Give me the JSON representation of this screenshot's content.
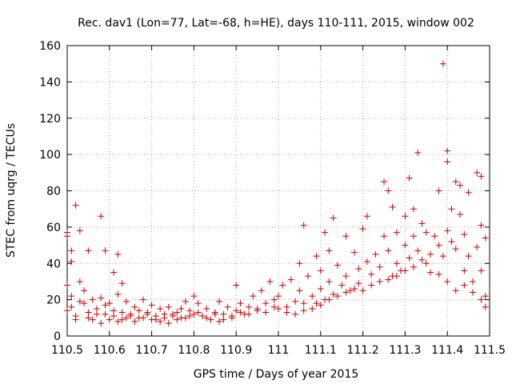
{
  "chart_data": {
    "type": "scatter",
    "title": "Rec. dav1 (Lon=77, Lat=-68, h=HE), days 110-111, 2015, window 002",
    "xlabel": "GPS time / Days of year 2015",
    "ylabel": "STEC from uqrg / TECUs",
    "xlim": [
      110.5,
      111.5
    ],
    "ylim": [
      0,
      160
    ],
    "x_ticks": [
      110.5,
      110.6,
      110.7,
      110.8,
      110.9,
      111.0,
      111.1,
      111.2,
      111.3,
      111.4,
      111.5
    ],
    "x_tick_labels": [
      "110.5",
      "110.6",
      "110.7",
      "110.8",
      "110.9",
      "111",
      "111.1",
      "111.2",
      "111.3",
      "111.4",
      "111.5"
    ],
    "y_ticks": [
      0,
      20,
      40,
      60,
      80,
      100,
      120,
      140,
      160
    ],
    "y_tick_labels": [
      "0",
      "20",
      "40",
      "60",
      "80",
      "100",
      "120",
      "140",
      "160"
    ],
    "grid": true,
    "marker": "+",
    "color": "#cc0000",
    "series": [
      {
        "name": "STEC",
        "points": [
          [
            110.5,
            57
          ],
          [
            110.5,
            55
          ],
          [
            110.51,
            41
          ],
          [
            110.51,
            47
          ],
          [
            110.52,
            72
          ],
          [
            110.53,
            58
          ],
          [
            110.55,
            47
          ],
          [
            110.58,
            66
          ],
          [
            110.59,
            47
          ],
          [
            110.61,
            35
          ],
          [
            110.62,
            45
          ],
          [
            110.63,
            29
          ],
          [
            110.5,
            28
          ],
          [
            110.51,
            22
          ],
          [
            110.51,
            16
          ],
          [
            110.52,
            11
          ],
          [
            110.53,
            30
          ],
          [
            110.54,
            25
          ],
          [
            110.54,
            18
          ],
          [
            110.55,
            13
          ],
          [
            110.56,
            20
          ],
          [
            110.56,
            9
          ],
          [
            110.57,
            15
          ],
          [
            110.58,
            21
          ],
          [
            110.58,
            7
          ],
          [
            110.59,
            12
          ],
          [
            110.6,
            18
          ],
          [
            110.6,
            9
          ],
          [
            110.61,
            14
          ],
          [
            110.62,
            23
          ],
          [
            110.62,
            8
          ],
          [
            110.63,
            13
          ],
          [
            110.64,
            19
          ],
          [
            110.64,
            10
          ],
          [
            110.65,
            12
          ],
          [
            110.66,
            16
          ],
          [
            110.66,
            8
          ],
          [
            110.67,
            14
          ],
          [
            110.68,
            20
          ],
          [
            110.68,
            10
          ],
          [
            110.69,
            13
          ],
          [
            110.7,
            17
          ],
          [
            110.7,
            9
          ],
          [
            110.71,
            11
          ],
          [
            110.72,
            15
          ],
          [
            110.72,
            8
          ],
          [
            110.73,
            12
          ],
          [
            110.74,
            16
          ],
          [
            110.74,
            7
          ],
          [
            110.75,
            11
          ],
          [
            110.76,
            13
          ],
          [
            110.76,
            9
          ],
          [
            110.77,
            15
          ],
          [
            110.78,
            19
          ],
          [
            110.78,
            10
          ],
          [
            110.79,
            14
          ],
          [
            110.8,
            22
          ],
          [
            110.8,
            12
          ],
          [
            110.81,
            18
          ],
          [
            110.82,
            11
          ],
          [
            110.83,
            15
          ],
          [
            110.84,
            9
          ],
          [
            110.85,
            13
          ],
          [
            110.86,
            19
          ],
          [
            110.86,
            8
          ],
          [
            110.87,
            12
          ],
          [
            110.88,
            16
          ],
          [
            110.89,
            10
          ],
          [
            110.9,
            14
          ],
          [
            110.9,
            28
          ],
          [
            110.91,
            18
          ],
          [
            110.92,
            12
          ],
          [
            110.93,
            16
          ],
          [
            110.94,
            22
          ],
          [
            110.95,
            14
          ],
          [
            110.96,
            25
          ],
          [
            110.97,
            18
          ],
          [
            110.98,
            30
          ],
          [
            110.99,
            20
          ],
          [
            110.5,
            14
          ],
          [
            110.52,
            9
          ],
          [
            110.53,
            19
          ],
          [
            110.55,
            10
          ],
          [
            110.57,
            12
          ],
          [
            110.59,
            17
          ],
          [
            110.61,
            11
          ],
          [
            110.63,
            9
          ],
          [
            110.65,
            11
          ],
          [
            110.67,
            10
          ],
          [
            110.69,
            12
          ],
          [
            110.71,
            9
          ],
          [
            110.73,
            10
          ],
          [
            110.75,
            12
          ],
          [
            110.77,
            10
          ],
          [
            110.79,
            11
          ],
          [
            110.81,
            13
          ],
          [
            110.83,
            10
          ],
          [
            110.85,
            12
          ],
          [
            110.87,
            9
          ],
          [
            110.89,
            11
          ],
          [
            110.91,
            13
          ],
          [
            110.93,
            12
          ],
          [
            110.95,
            15
          ],
          [
            110.97,
            13
          ],
          [
            110.99,
            16
          ],
          [
            111.0,
            22
          ],
          [
            111.01,
            28
          ],
          [
            111.02,
            16
          ],
          [
            111.03,
            31
          ],
          [
            111.04,
            19
          ],
          [
            111.05,
            40
          ],
          [
            111.05,
            25
          ],
          [
            111.06,
            61
          ],
          [
            111.06,
            14
          ],
          [
            111.07,
            33
          ],
          [
            111.08,
            22
          ],
          [
            111.09,
            44
          ],
          [
            111.09,
            18
          ],
          [
            111.1,
            36
          ],
          [
            111.1,
            26
          ],
          [
            111.11,
            57
          ],
          [
            111.11,
            20
          ],
          [
            111.12,
            47
          ],
          [
            111.12,
            30
          ],
          [
            111.13,
            65
          ],
          [
            111.13,
            23
          ],
          [
            111.14,
            39
          ],
          [
            111.15,
            28
          ],
          [
            111.16,
            55
          ],
          [
            111.16,
            33
          ],
          [
            111.17,
            25
          ],
          [
            111.18,
            46
          ],
          [
            111.19,
            37
          ],
          [
            111.19,
            29
          ],
          [
            111.2,
            59
          ],
          [
            111.21,
            66
          ],
          [
            111.21,
            41
          ],
          [
            111.22,
            34
          ],
          [
            111.23,
            45
          ],
          [
            111.24,
            38
          ],
          [
            111.25,
            85
          ],
          [
            111.25,
            55
          ],
          [
            111.26,
            80
          ],
          [
            111.26,
            47
          ],
          [
            111.27,
            71
          ],
          [
            111.27,
            33
          ],
          [
            111.28,
            57
          ],
          [
            111.28,
            40
          ],
          [
            111.29,
            36
          ],
          [
            111.3,
            66
          ],
          [
            111.3,
            50
          ],
          [
            111.31,
            87
          ],
          [
            111.31,
            43
          ],
          [
            111.32,
            70
          ],
          [
            111.32,
            55
          ],
          [
            111.33,
            101
          ],
          [
            111.33,
            47
          ],
          [
            111.34,
            62
          ],
          [
            111.35,
            57
          ],
          [
            111.35,
            40
          ],
          [
            111.36,
            45
          ],
          [
            111.37,
            55
          ],
          [
            111.38,
            80
          ],
          [
            111.38,
            50
          ],
          [
            111.39,
            150
          ],
          [
            111.39,
            44
          ],
          [
            111.4,
            102
          ],
          [
            111.4,
            96
          ],
          [
            111.4,
            58
          ],
          [
            111.41,
            70
          ],
          [
            111.41,
            52
          ],
          [
            111.42,
            85
          ],
          [
            111.42,
            48
          ],
          [
            111.43,
            67
          ],
          [
            111.43,
            83
          ],
          [
            111.44,
            56
          ],
          [
            111.44,
            36
          ],
          [
            111.45,
            79
          ],
          [
            111.45,
            44
          ],
          [
            111.46,
            30
          ],
          [
            111.47,
            90
          ],
          [
            111.47,
            49
          ],
          [
            111.48,
            88
          ],
          [
            111.48,
            61
          ],
          [
            111.48,
            36
          ],
          [
            111.49,
            54
          ],
          [
            111.49,
            22
          ],
          [
            111.49,
            16
          ],
          [
            111.0,
            15
          ],
          [
            111.02,
            13
          ],
          [
            111.04,
            12
          ],
          [
            111.06,
            18
          ],
          [
            111.08,
            15
          ],
          [
            111.1,
            17
          ],
          [
            111.12,
            20
          ],
          [
            111.14,
            22
          ],
          [
            111.16,
            24
          ],
          [
            111.18,
            26
          ],
          [
            111.2,
            25
          ],
          [
            111.22,
            28
          ],
          [
            111.24,
            30
          ],
          [
            111.26,
            31
          ],
          [
            111.28,
            33
          ],
          [
            111.3,
            36
          ],
          [
            111.32,
            38
          ],
          [
            111.34,
            42
          ],
          [
            111.36,
            35
          ],
          [
            111.38,
            34
          ],
          [
            111.4,
            30
          ],
          [
            111.42,
            25
          ],
          [
            111.44,
            28
          ],
          [
            111.46,
            24
          ],
          [
            111.48,
            20
          ]
        ]
      }
    ]
  }
}
